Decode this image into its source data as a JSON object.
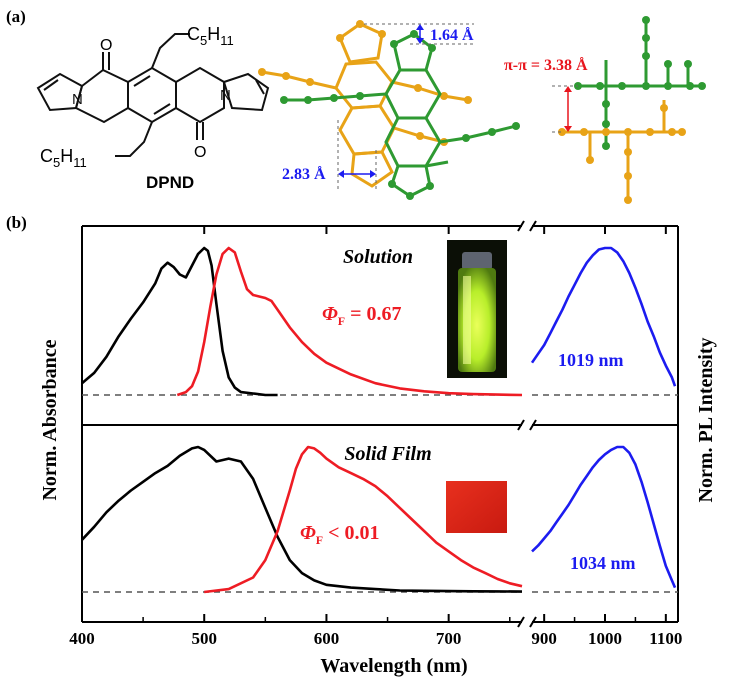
{
  "panel_a": {
    "label": "(a)",
    "molecule": {
      "name": "DPND",
      "substituent_top": "C5H11",
      "substituent_bottom": "C5H11",
      "atom_o": "O",
      "atom_n": "N"
    },
    "packing_view_1": {
      "offset_vertical": "1.64 Å",
      "offset_horizontal": "2.83 Å"
    },
    "packing_view_2": {
      "stacking_distance": "π-π = 3.38 Å"
    }
  },
  "panel_b": {
    "label": "(b)",
    "y_axis_left": "Norm. Absorbance",
    "y_axis_right": "Norm. PL Intensity",
    "x_axis_label": "Wavelength (nm)",
    "colors": {
      "absorbance": "#000000",
      "pl_visible": "#ee1c24",
      "pl_nir": "#1c1cf0",
      "baseline": "#555555"
    }
  },
  "chart_data": [
    {
      "type": "line",
      "title": "Solution",
      "annotation_qy": "0.67",
      "annotation_qy_op": "=",
      "nir_peak_label": "1019 nm",
      "xlim": [
        400,
        1120
      ],
      "x_break": [
        760,
        880
      ],
      "ylim": [
        0,
        1.05
      ],
      "series": [
        {
          "name": "",
          "color": "#000000",
          "x": [
            400,
            410,
            420,
            430,
            440,
            450,
            460,
            465,
            470,
            475,
            480,
            485,
            490,
            495,
            500,
            503,
            506,
            510,
            515,
            520,
            525,
            530,
            540,
            550,
            560
          ],
          "y": [
            0.08,
            0.15,
            0.26,
            0.4,
            0.52,
            0.63,
            0.76,
            0.86,
            0.9,
            0.87,
            0.82,
            0.8,
            0.88,
            0.96,
            1.0,
            0.98,
            0.88,
            0.62,
            0.3,
            0.12,
            0.05,
            0.02,
            0.01,
            0.0,
            0.0
          ]
        },
        {
          "name": "",
          "color": "#ee1c24",
          "x": [
            478,
            485,
            490,
            495,
            500,
            505,
            510,
            515,
            520,
            525,
            530,
            535,
            540,
            545,
            550,
            555,
            560,
            570,
            580,
            590,
            600,
            620,
            640,
            660,
            680,
            700,
            720,
            740,
            760
          ],
          "y": [
            0.0,
            0.02,
            0.06,
            0.16,
            0.36,
            0.6,
            0.82,
            0.96,
            1.0,
            0.97,
            0.84,
            0.72,
            0.68,
            0.67,
            0.66,
            0.64,
            0.58,
            0.46,
            0.36,
            0.28,
            0.22,
            0.14,
            0.08,
            0.045,
            0.025,
            0.012,
            0.006,
            0.003,
            0.0
          ]
        },
        {
          "name": "",
          "color": "#1c1cf0",
          "x": [
            880,
            890,
            900,
            910,
            920,
            930,
            940,
            950,
            960,
            970,
            980,
            990,
            1000,
            1010,
            1020,
            1030,
            1040,
            1050,
            1060,
            1070,
            1080,
            1090,
            1100,
            1110,
            1115
          ],
          "y": [
            0.22,
            0.28,
            0.34,
            0.42,
            0.5,
            0.58,
            0.67,
            0.75,
            0.83,
            0.9,
            0.95,
            0.99,
            1.0,
            1.0,
            0.97,
            0.91,
            0.83,
            0.73,
            0.62,
            0.5,
            0.4,
            0.29,
            0.2,
            0.12,
            0.06
          ]
        }
      ]
    },
    {
      "type": "line",
      "title": "Solid Film",
      "annotation_qy": "0.01",
      "annotation_qy_op": "<",
      "nir_peak_label": "1034 nm",
      "xlim": [
        400,
        1120
      ],
      "x_break": [
        760,
        880
      ],
      "ylim": [
        0,
        1.05
      ],
      "series": [
        {
          "name": "",
          "color": "#000000",
          "x": [
            400,
            410,
            420,
            430,
            440,
            450,
            460,
            470,
            480,
            490,
            495,
            500,
            510,
            520,
            530,
            540,
            550,
            560,
            570,
            580,
            590,
            600,
            620,
            640,
            660,
            680,
            700,
            720,
            740,
            760
          ],
          "y": [
            0.36,
            0.45,
            0.55,
            0.63,
            0.7,
            0.76,
            0.82,
            0.87,
            0.94,
            0.99,
            1.0,
            0.98,
            0.9,
            0.92,
            0.9,
            0.78,
            0.58,
            0.38,
            0.22,
            0.13,
            0.08,
            0.05,
            0.03,
            0.02,
            0.01,
            0.008,
            0.006,
            0.005,
            0.004,
            0.003
          ]
        },
        {
          "name": "",
          "color": "#ee1c24",
          "x": [
            500,
            520,
            540,
            550,
            560,
            570,
            575,
            580,
            585,
            590,
            595,
            600,
            610,
            620,
            630,
            640,
            650,
            660,
            670,
            680,
            690,
            700,
            710,
            720,
            730,
            740,
            750,
            760
          ],
          "y": [
            0.0,
            0.02,
            0.1,
            0.22,
            0.42,
            0.7,
            0.85,
            0.95,
            1.0,
            0.99,
            0.96,
            0.92,
            0.86,
            0.82,
            0.78,
            0.73,
            0.66,
            0.58,
            0.5,
            0.42,
            0.34,
            0.28,
            0.22,
            0.17,
            0.13,
            0.09,
            0.06,
            0.04
          ]
        },
        {
          "name": "",
          "color": "#1c1cf0",
          "x": [
            880,
            890,
            900,
            910,
            920,
            930,
            940,
            950,
            960,
            970,
            980,
            990,
            1000,
            1010,
            1020,
            1030,
            1040,
            1050,
            1060,
            1070,
            1080,
            1090,
            1100,
            1110,
            1115
          ],
          "y": [
            0.28,
            0.32,
            0.37,
            0.42,
            0.48,
            0.54,
            0.6,
            0.67,
            0.74,
            0.8,
            0.86,
            0.91,
            0.95,
            0.98,
            1.0,
            1.0,
            0.96,
            0.88,
            0.76,
            0.62,
            0.47,
            0.32,
            0.18,
            0.08,
            0.03
          ]
        }
      ]
    }
  ],
  "x_ticks": [
    "400",
    "500",
    "600",
    "700",
    "900",
    "1000",
    "1100"
  ]
}
